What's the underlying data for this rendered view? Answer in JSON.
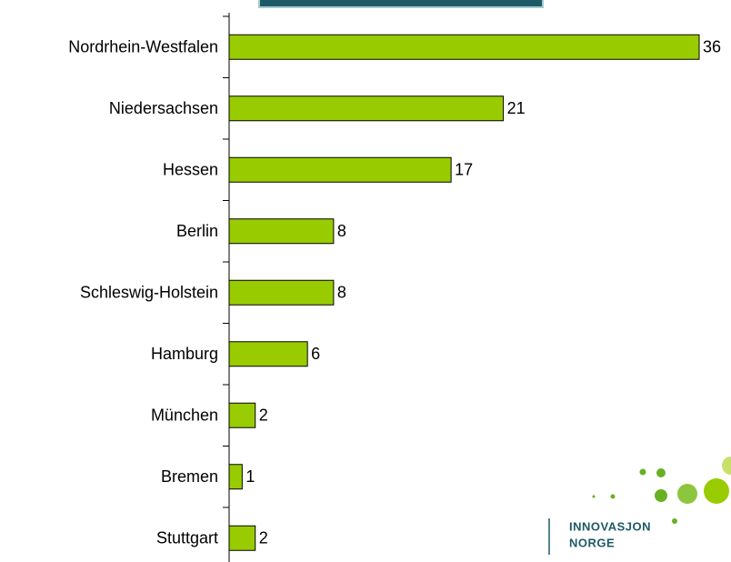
{
  "chart_data": {
    "type": "bar",
    "orientation": "horizontal",
    "categories": [
      "Nordrhein-Westfalen",
      "Niedersachsen",
      "Hessen",
      "Berlin",
      "Schleswig-Holstein",
      "Hamburg",
      "München",
      "Bremen",
      "Stuttgart"
    ],
    "values": [
      36,
      21,
      17,
      8,
      8,
      6,
      2,
      1,
      2
    ],
    "color": "#99cc00"
  },
  "logo": {
    "line1": "INNOVASJON",
    "line2": "NORGE"
  }
}
